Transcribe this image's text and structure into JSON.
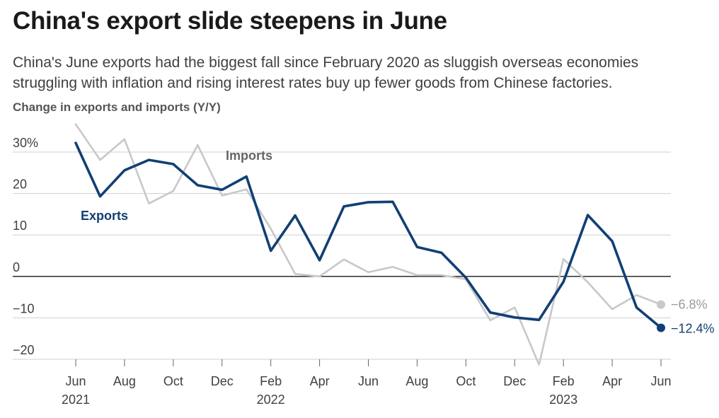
{
  "title": "China's export slide steepens in June",
  "subtitle": "China's June exports had the biggest fall since February 2020 as sluggish overseas economies struggling with inflation and rising interest rates buy up fewer goods from Chinese factories.",
  "chart_data": {
    "type": "line",
    "ylabel": "Change in exports and imports (Y/Y)",
    "xlabel": "",
    "ylim": [
      -20,
      30
    ],
    "y_ticks": [
      {
        "value": 30,
        "label": "30%"
      },
      {
        "value": 20,
        "label": "20"
      },
      {
        "value": 10,
        "label": "10"
      },
      {
        "value": 0,
        "label": "0"
      },
      {
        "value": -10,
        "label": "−10"
      },
      {
        "value": -20,
        "label": "−20"
      }
    ],
    "x_ticks": [
      {
        "month": "2021-06",
        "label": "Jun",
        "year": "2021"
      },
      {
        "month": "2021-08",
        "label": "Aug",
        "year": ""
      },
      {
        "month": "2021-10",
        "label": "Oct",
        "year": ""
      },
      {
        "month": "2021-12",
        "label": "Dec",
        "year": ""
      },
      {
        "month": "2022-02",
        "label": "Feb",
        "year": "2022"
      },
      {
        "month": "2022-04",
        "label": "Apr",
        "year": ""
      },
      {
        "month": "2022-06",
        "label": "Jun",
        "year": ""
      },
      {
        "month": "2022-08",
        "label": "Aug",
        "year": ""
      },
      {
        "month": "2022-10",
        "label": "Oct",
        "year": ""
      },
      {
        "month": "2022-12",
        "label": "Dec",
        "year": ""
      },
      {
        "month": "2023-02",
        "label": "Feb",
        "year": "2023"
      },
      {
        "month": "2023-04",
        "label": "Apr",
        "year": ""
      },
      {
        "month": "2023-06",
        "label": "Jun",
        "year": ""
      }
    ],
    "series": [
      {
        "name": "Imports",
        "color": "#c8c8c8",
        "end_label": "−6.8%",
        "points": [
          {
            "x": "2021-06",
            "y": 36.7
          },
          {
            "x": "2021-07",
            "y": 28.1
          },
          {
            "x": "2021-08",
            "y": 33.1
          },
          {
            "x": "2021-09",
            "y": 17.6
          },
          {
            "x": "2021-10",
            "y": 20.6
          },
          {
            "x": "2021-11",
            "y": 31.7
          },
          {
            "x": "2021-12",
            "y": 19.5
          },
          {
            "x": "2022-01",
            "y": 21.0
          },
          {
            "x": "2022-02",
            "y": 11.5
          },
          {
            "x": "2022-03",
            "y": 0.6
          },
          {
            "x": "2022-04",
            "y": 0.0
          },
          {
            "x": "2022-05",
            "y": 4.1
          },
          {
            "x": "2022-06",
            "y": 1.0
          },
          {
            "x": "2022-07",
            "y": 2.3
          },
          {
            "x": "2022-08",
            "y": 0.3
          },
          {
            "x": "2022-09",
            "y": 0.3
          },
          {
            "x": "2022-10",
            "y": -0.7
          },
          {
            "x": "2022-11",
            "y": -10.6
          },
          {
            "x": "2022-12",
            "y": -7.5
          },
          {
            "x": "2023-01",
            "y": -21.3
          },
          {
            "x": "2023-02",
            "y": 4.2
          },
          {
            "x": "2023-03",
            "y": -1.4
          },
          {
            "x": "2023-04",
            "y": -7.9
          },
          {
            "x": "2023-05",
            "y": -4.5
          },
          {
            "x": "2023-06",
            "y": -6.8
          }
        ]
      },
      {
        "name": "Exports",
        "color": "#123f74",
        "end_label": "−12.4%",
        "points": [
          {
            "x": "2021-06",
            "y": 32.2
          },
          {
            "x": "2021-07",
            "y": 19.3
          },
          {
            "x": "2021-08",
            "y": 25.6
          },
          {
            "x": "2021-09",
            "y": 28.1
          },
          {
            "x": "2021-10",
            "y": 27.1
          },
          {
            "x": "2021-11",
            "y": 22.0
          },
          {
            "x": "2021-12",
            "y": 20.9
          },
          {
            "x": "2022-01",
            "y": 24.1
          },
          {
            "x": "2022-02",
            "y": 6.2
          },
          {
            "x": "2022-03",
            "y": 14.7
          },
          {
            "x": "2022-04",
            "y": 3.9
          },
          {
            "x": "2022-05",
            "y": 16.9
          },
          {
            "x": "2022-06",
            "y": 17.9
          },
          {
            "x": "2022-07",
            "y": 18.0
          },
          {
            "x": "2022-08",
            "y": 7.1
          },
          {
            "x": "2022-09",
            "y": 5.7
          },
          {
            "x": "2022-10",
            "y": -0.3
          },
          {
            "x": "2022-11",
            "y": -8.7
          },
          {
            "x": "2022-12",
            "y": -9.9
          },
          {
            "x": "2023-01",
            "y": -10.5
          },
          {
            "x": "2023-02",
            "y": -1.3
          },
          {
            "x": "2023-03",
            "y": 14.8
          },
          {
            "x": "2023-04",
            "y": 8.5
          },
          {
            "x": "2023-05",
            "y": -7.5
          },
          {
            "x": "2023-06",
            "y": -12.4
          }
        ]
      }
    ],
    "grid": true,
    "zero_line": true,
    "legend": "inline labels"
  }
}
